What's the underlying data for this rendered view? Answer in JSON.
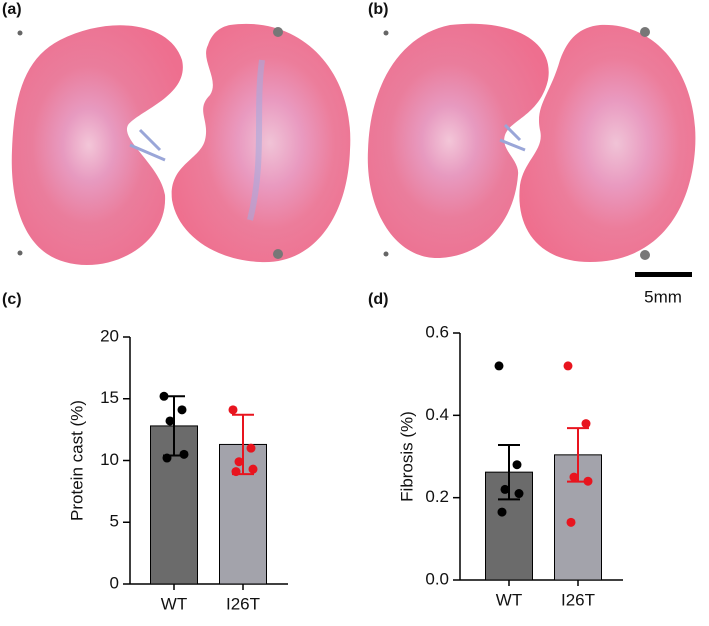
{
  "panels": {
    "a": "(a)",
    "b": "(b)",
    "c": "(c)",
    "d": "(d)"
  },
  "scale_bar": "5mm",
  "chart_data": [
    {
      "type": "bar",
      "ylabel": "Protein cast (%)",
      "categories": [
        "WT",
        "I26T"
      ],
      "values": [
        12.8,
        11.3
      ],
      "errors": [
        2.4,
        2.4
      ],
      "points": [
        [
          15.2,
          14.1,
          13.2,
          10.5,
          10.2
        ],
        [
          14.1,
          11.0,
          9.9,
          9.3,
          9.1
        ]
      ],
      "bar_colors": [
        "#6b6b6b",
        "#a3a3ab"
      ],
      "point_colors": [
        "#000000",
        "#e8141e"
      ],
      "ylim": [
        0,
        20
      ],
      "yticks": [
        0,
        5,
        10,
        15,
        20
      ]
    },
    {
      "type": "bar",
      "ylabel": "Fibrosis (%)",
      "categories": [
        "WT",
        "I26T"
      ],
      "values": [
        0.262,
        0.304
      ],
      "errors": [
        0.066,
        0.065
      ],
      "points": [
        [
          0.52,
          0.28,
          0.22,
          0.21,
          0.165
        ],
        [
          0.52,
          0.38,
          0.25,
          0.24,
          0.14
        ]
      ],
      "bar_colors": [
        "#6b6b6b",
        "#a3a3ab"
      ],
      "point_colors": [
        "#000000",
        "#e8141e"
      ],
      "ylim": [
        0,
        0.6
      ],
      "yticks": [
        {
          "value": 0,
          "label": "0.0"
        },
        0.2,
        0.4,
        0.6
      ]
    }
  ]
}
